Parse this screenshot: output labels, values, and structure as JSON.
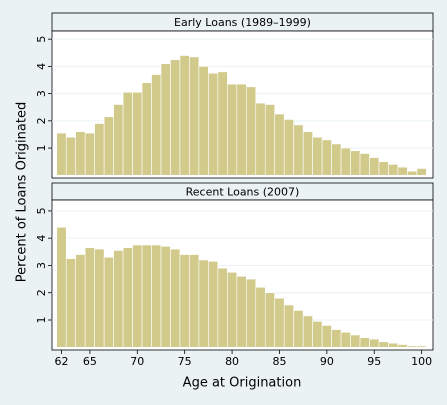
{
  "chart_data": [
    {
      "type": "histogram",
      "title": "Early Loans (1989–1999)",
      "ylabel": "Percent of Loans Originated",
      "color": "#d1ca8b",
      "bins": [
        61.5,
        62.5,
        63.5,
        64.5,
        65.5,
        66.5,
        67.5,
        68.5,
        69.5,
        70.5,
        71.5,
        72.5,
        73.5,
        74.5,
        75.5,
        76.5,
        77.5,
        78.5,
        79.5,
        80.5,
        81.5,
        82.5,
        83.5,
        84.5,
        85.5,
        86.5,
        87.5,
        88.5,
        89.5,
        90.5,
        91.5,
        92.5,
        93.5,
        94.5,
        95.5,
        96.5,
        97.5,
        98.5,
        99.5,
        100.5
      ],
      "values": [
        1.55,
        1.4,
        1.6,
        1.55,
        1.9,
        2.15,
        2.6,
        3.05,
        3.05,
        3.4,
        3.7,
        4.1,
        4.25,
        4.4,
        4.35,
        4.0,
        3.75,
        3.8,
        3.35,
        3.35,
        3.25,
        2.65,
        2.6,
        2.25,
        2.05,
        1.85,
        1.6,
        1.4,
        1.3,
        1.15,
        1.0,
        0.9,
        0.8,
        0.65,
        0.5,
        0.4,
        0.3,
        0.15,
        0.25
      ],
      "xlim": [
        61,
        101.2
      ],
      "ylim": [
        -0.1,
        5.3
      ],
      "yticks": [
        1,
        2,
        3,
        4,
        5
      ],
      "grid": true
    },
    {
      "type": "histogram",
      "title": "Recent Loans (2007)",
      "xlabel": "Age at Origination",
      "color": "#d1ca8b",
      "bins": [
        61.5,
        62.5,
        63.5,
        64.5,
        65.5,
        66.5,
        67.5,
        68.5,
        69.5,
        70.5,
        71.5,
        72.5,
        73.5,
        74.5,
        75.5,
        76.5,
        77.5,
        78.5,
        79.5,
        80.5,
        81.5,
        82.5,
        83.5,
        84.5,
        85.5,
        86.5,
        87.5,
        88.5,
        89.5,
        90.5,
        91.5,
        92.5,
        93.5,
        94.5,
        95.5,
        96.5,
        97.5,
        98.5,
        99.5,
        100.5
      ],
      "values": [
        4.4,
        3.25,
        3.4,
        3.65,
        3.6,
        3.3,
        3.55,
        3.65,
        3.75,
        3.75,
        3.75,
        3.7,
        3.6,
        3.4,
        3.4,
        3.2,
        3.15,
        2.9,
        2.75,
        2.6,
        2.5,
        2.2,
        2.0,
        1.8,
        1.55,
        1.35,
        1.15,
        0.95,
        0.8,
        0.65,
        0.55,
        0.45,
        0.35,
        0.3,
        0.2,
        0.15,
        0.1,
        0.05,
        0.05
      ],
      "xlim": [
        61,
        101.2
      ],
      "ylim": [
        -0.1,
        5.4
      ],
      "yticks": [
        1,
        2,
        3,
        4,
        5
      ],
      "xticks": [
        62,
        65,
        70,
        75,
        80,
        85,
        90,
        95,
        100
      ],
      "grid": true
    }
  ]
}
